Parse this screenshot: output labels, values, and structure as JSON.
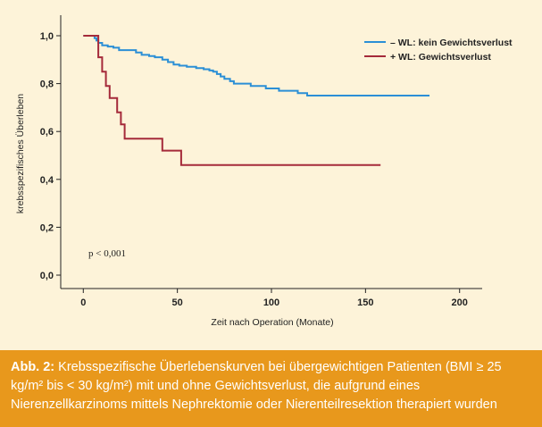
{
  "chart_data": {
    "type": "line",
    "step": true,
    "xlabel": "Zeit nach Operation (Monate)",
    "ylabel": "krebsspezifisches Überleben",
    "xlim": [
      -12,
      212
    ],
    "ylim": [
      0,
      1.0
    ],
    "xticks": [
      0,
      50,
      100,
      150,
      200
    ],
    "xtick_labels": [
      "0",
      "50",
      "100",
      "150",
      "200"
    ],
    "yticks": [
      0.0,
      0.2,
      0.4,
      0.6,
      0.8,
      1.0
    ],
    "ytick_labels": [
      "0,0",
      "0,2",
      "0,4",
      "0,6",
      "0,8",
      "1,0"
    ],
    "grid": false,
    "legend_position": "top-right",
    "annotation": "p < 0,001",
    "series": [
      {
        "name": "– WL: kein Gewichtsverlust",
        "color": "#2b8fd6",
        "points": [
          [
            0,
            1.0
          ],
          [
            5,
            1.0
          ],
          [
            6,
            0.99
          ],
          [
            7,
            0.98
          ],
          [
            8,
            0.97
          ],
          [
            10,
            0.96
          ],
          [
            13,
            0.955
          ],
          [
            16,
            0.95
          ],
          [
            19,
            0.94
          ],
          [
            26,
            0.94
          ],
          [
            28,
            0.93
          ],
          [
            31,
            0.92
          ],
          [
            35,
            0.915
          ],
          [
            38,
            0.91
          ],
          [
            42,
            0.9
          ],
          [
            45,
            0.89
          ],
          [
            48,
            0.88
          ],
          [
            51,
            0.875
          ],
          [
            55,
            0.87
          ],
          [
            60,
            0.865
          ],
          [
            64,
            0.86
          ],
          [
            67,
            0.855
          ],
          [
            69,
            0.85
          ],
          [
            71,
            0.84
          ],
          [
            73,
            0.83
          ],
          [
            75,
            0.82
          ],
          [
            78,
            0.81
          ],
          [
            80,
            0.8
          ],
          [
            87,
            0.8
          ],
          [
            89,
            0.79
          ],
          [
            95,
            0.79
          ],
          [
            97,
            0.78
          ],
          [
            103,
            0.78
          ],
          [
            104,
            0.77
          ],
          [
            113,
            0.77
          ],
          [
            114,
            0.76
          ],
          [
            118,
            0.76
          ],
          [
            119,
            0.75
          ],
          [
            184,
            0.75
          ]
        ]
      },
      {
        "name": "+ WL: Gewichtsverlust",
        "color": "#a52a3a",
        "points": [
          [
            0,
            1.0
          ],
          [
            8,
            1.0
          ],
          [
            8,
            0.91
          ],
          [
            10,
            0.91
          ],
          [
            10,
            0.85
          ],
          [
            12,
            0.85
          ],
          [
            12,
            0.79
          ],
          [
            14,
            0.79
          ],
          [
            14,
            0.74
          ],
          [
            18,
            0.74
          ],
          [
            18,
            0.68
          ],
          [
            20,
            0.68
          ],
          [
            20,
            0.63
          ],
          [
            22,
            0.63
          ],
          [
            22,
            0.57
          ],
          [
            42,
            0.57
          ],
          [
            42,
            0.52
          ],
          [
            52,
            0.52
          ],
          [
            52,
            0.46
          ],
          [
            158,
            0.46
          ]
        ]
      }
    ]
  },
  "caption": {
    "prefix": "Abb. 2:",
    "text": "Krebsspezifische Überlebenskurven bei übergewichtigen Patienten (BMI ≥ 25 kg/m² bis < 30 kg/m²) mit und ohne Gewichtsverlust, die aufgrund eines Nierenzellkarzinoms mittels Nephrektomie oder Nierenteilresektion therapiert wurden"
  }
}
